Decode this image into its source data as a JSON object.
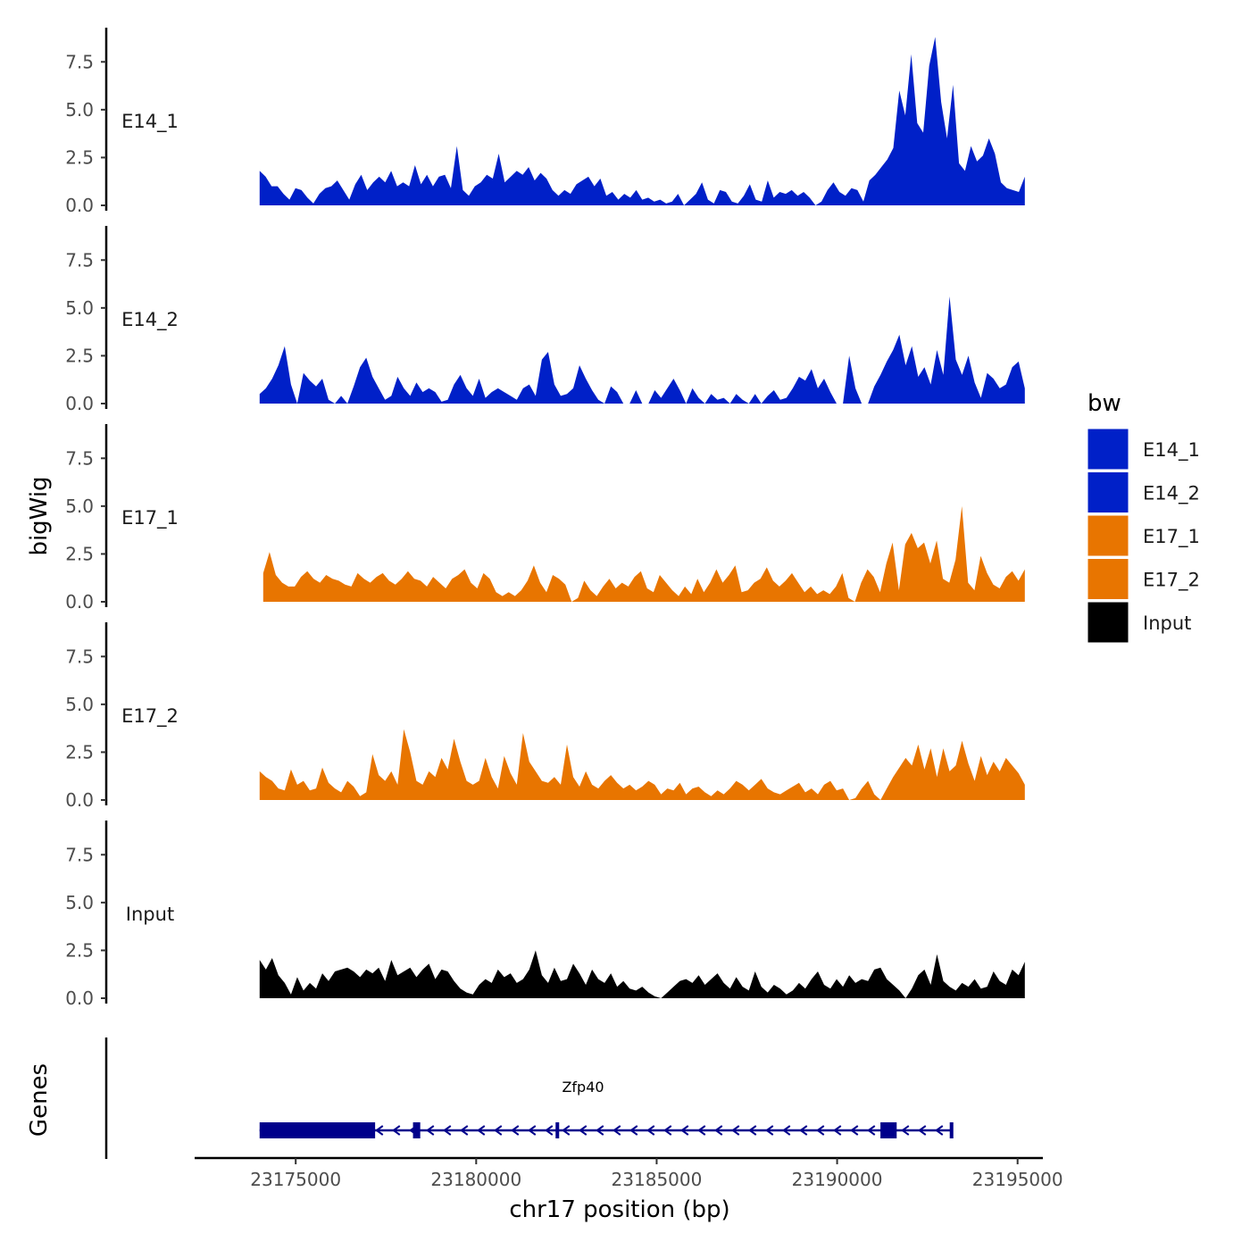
{
  "chart_data": {
    "type": "area",
    "ylabel": "bigWig",
    "xlabel": "chr17 position (bp)",
    "ylim": [
      0,
      9.1
    ],
    "y_ticks": [
      "0.0",
      "2.5",
      "5.0",
      "7.5"
    ],
    "x_range": [
      23172200,
      23195700
    ],
    "x_ticks": [
      23175000,
      23180000,
      23185000,
      23190000,
      23195000
    ],
    "x_tick_labels": [
      "23175000",
      "23180000",
      "23185000",
      "23190000",
      "23195000"
    ],
    "genes_ylabel": "Genes",
    "legend": {
      "title": "bw",
      "entries": [
        "E14_1",
        "E14_2",
        "E17_1",
        "E17_2",
        "Input"
      ]
    },
    "colors": {
      "E14_1": "#0020c8",
      "E14_2": "#0020c8",
      "E17_1": "#e87500",
      "E17_2": "#e87500",
      "Input": "#000000",
      "gene": "#00008b"
    },
    "series": [
      {
        "name": "E14_1",
        "start": 23174000,
        "end": 23195200,
        "values": [
          1.8,
          1.5,
          1.0,
          1.0,
          0.6,
          0.3,
          0.9,
          0.8,
          0.4,
          0.1,
          0.6,
          0.9,
          1.0,
          1.3,
          0.8,
          0.3,
          1.1,
          1.6,
          0.8,
          1.2,
          1.5,
          1.2,
          1.8,
          1.0,
          1.2,
          1.0,
          2.1,
          1.1,
          1.6,
          1.0,
          1.5,
          1.6,
          0.9,
          3.1,
          0.8,
          0.5,
          1.0,
          1.2,
          1.6,
          1.4,
          2.7,
          1.2,
          1.5,
          1.8,
          1.6,
          2.0,
          1.3,
          1.7,
          1.4,
          0.8,
          0.5,
          0.8,
          0.6,
          1.1,
          1.3,
          1.5,
          1.0,
          1.4,
          0.5,
          0.7,
          0.3,
          0.6,
          0.4,
          0.8,
          0.3,
          0.4,
          0.2,
          0.3,
          0.1,
          0.2,
          0.6,
          0.0,
          0.3,
          0.6,
          1.2,
          0.3,
          0.1,
          0.8,
          0.7,
          0.2,
          0.1,
          0.5,
          1.1,
          0.3,
          0.2,
          1.3,
          0.4,
          0.7,
          0.6,
          0.8,
          0.5,
          0.7,
          0.4,
          0.0,
          0.2,
          0.8,
          1.2,
          0.7,
          0.5,
          0.9,
          0.8,
          0.2,
          1.3,
          1.6,
          2.0,
          2.4,
          3.0,
          6.0,
          4.7,
          7.9,
          4.3,
          3.8,
          7.3,
          8.8,
          5.4,
          3.5,
          6.3,
          2.2,
          1.8,
          3.1,
          2.3,
          2.6,
          3.5,
          2.7,
          1.2,
          0.9,
          0.8,
          0.7,
          1.5
        ]
      },
      {
        "name": "E14_2",
        "start": 23174000,
        "end": 23195200,
        "values": [
          0.5,
          0.8,
          1.3,
          2.0,
          3.0,
          1.0,
          0.0,
          1.6,
          1.2,
          0.9,
          1.3,
          0.2,
          0.0,
          0.4,
          0.0,
          0.9,
          1.9,
          2.4,
          1.4,
          0.8,
          0.2,
          0.4,
          1.4,
          0.8,
          0.4,
          1.1,
          0.6,
          0.8,
          0.6,
          0.1,
          0.2,
          1.0,
          1.5,
          0.8,
          0.4,
          1.3,
          0.3,
          0.6,
          0.8,
          0.6,
          0.4,
          0.2,
          0.8,
          1.0,
          0.4,
          2.3,
          2.7,
          1.0,
          0.4,
          0.5,
          0.8,
          2.0,
          1.3,
          0.7,
          0.2,
          0.0,
          0.9,
          0.6,
          0.0,
          0.0,
          0.7,
          0.0,
          0.0,
          0.7,
          0.3,
          0.8,
          1.3,
          0.7,
          0.0,
          0.8,
          0.3,
          0.0,
          0.5,
          0.2,
          0.3,
          0.0,
          0.5,
          0.2,
          0.0,
          0.5,
          0.0,
          0.4,
          0.7,
          0.2,
          0.3,
          0.8,
          1.4,
          1.2,
          1.8,
          0.8,
          1.3,
          0.6,
          0.0,
          0.0,
          2.5,
          0.8,
          0.0,
          0.0,
          0.9,
          1.5,
          2.2,
          2.8,
          3.6,
          2.0,
          3.0,
          1.4,
          1.9,
          1.0,
          2.8,
          1.5,
          5.6,
          2.3,
          1.5,
          2.5,
          1.1,
          0.3,
          1.6,
          1.3,
          0.8,
          1.0,
          1.9,
          2.2,
          0.8
        ]
      },
      {
        "name": "E17_1",
        "start": 23174100,
        "end": 23195200,
        "values": [
          1.5,
          2.6,
          1.4,
          1.0,
          0.8,
          0.8,
          1.3,
          1.6,
          1.2,
          1.0,
          1.4,
          1.2,
          1.1,
          0.9,
          0.8,
          1.5,
          1.2,
          1.0,
          1.3,
          1.5,
          1.1,
          0.9,
          1.2,
          1.6,
          1.2,
          1.1,
          0.8,
          1.3,
          1.0,
          0.7,
          1.2,
          1.4,
          1.7,
          1.0,
          0.7,
          1.5,
          1.2,
          0.5,
          0.3,
          0.5,
          0.3,
          0.6,
          1.1,
          1.9,
          1.0,
          0.5,
          1.4,
          1.2,
          0.9,
          0.0,
          0.2,
          1.1,
          0.6,
          0.3,
          0.8,
          1.2,
          0.7,
          1.0,
          0.8,
          1.3,
          1.6,
          0.7,
          0.5,
          1.4,
          1.0,
          0.6,
          0.3,
          0.8,
          0.4,
          1.2,
          0.5,
          1.0,
          1.7,
          1.0,
          1.4,
          1.9,
          0.5,
          0.6,
          1.0,
          1.2,
          1.8,
          1.1,
          0.8,
          1.1,
          1.5,
          1.0,
          0.5,
          0.8,
          0.4,
          0.6,
          0.4,
          0.8,
          1.5,
          0.2,
          0.0,
          1.0,
          1.7,
          1.3,
          0.5,
          2.0,
          3.1,
          0.6,
          3.0,
          3.6,
          2.8,
          3.1,
          2.0,
          3.2,
          1.2,
          1.0,
          2.2,
          5.0,
          1.0,
          0.6,
          2.4,
          1.5,
          0.9,
          0.7,
          1.3,
          1.6,
          1.1,
          1.7
        ]
      },
      {
        "name": "E17_2",
        "start": 23174000,
        "end": 23195200,
        "values": [
          1.5,
          1.2,
          1.0,
          0.6,
          0.5,
          1.6,
          0.8,
          1.0,
          0.5,
          0.6,
          1.7,
          0.9,
          0.6,
          0.4,
          1.0,
          0.7,
          0.2,
          0.4,
          2.4,
          1.3,
          1.0,
          1.5,
          0.8,
          3.7,
          2.5,
          1.0,
          0.8,
          1.5,
          1.2,
          2.2,
          1.6,
          3.2,
          2.0,
          1.0,
          0.8,
          1.0,
          2.2,
          1.2,
          0.6,
          2.3,
          1.4,
          0.8,
          3.5,
          2.0,
          1.5,
          1.0,
          0.9,
          1.2,
          0.8,
          2.9,
          1.2,
          0.7,
          1.5,
          0.8,
          0.6,
          1.0,
          1.3,
          0.9,
          0.6,
          0.8,
          0.5,
          0.7,
          1.0,
          0.8,
          0.3,
          0.6,
          0.5,
          0.9,
          0.3,
          0.6,
          0.7,
          0.4,
          0.2,
          0.5,
          0.3,
          0.6,
          1.0,
          0.8,
          0.5,
          0.8,
          1.1,
          0.6,
          0.4,
          0.3,
          0.5,
          0.7,
          0.9,
          0.4,
          0.6,
          0.3,
          0.8,
          1.0,
          0.5,
          0.6,
          0.0,
          0.1,
          0.6,
          1.0,
          0.3,
          0.0,
          0.6,
          1.2,
          1.7,
          2.2,
          1.8,
          2.9,
          1.6,
          2.7,
          1.2,
          2.7,
          1.5,
          1.8,
          3.1,
          1.9,
          1.0,
          2.3,
          1.3,
          2.0,
          1.5,
          2.2,
          1.8,
          1.4,
          0.8
        ]
      },
      {
        "name": "Input",
        "start": 23174000,
        "end": 23195200,
        "values": [
          2.0,
          1.5,
          2.1,
          1.2,
          0.8,
          0.2,
          1.1,
          0.4,
          0.8,
          0.5,
          1.3,
          0.9,
          1.4,
          1.5,
          1.6,
          1.4,
          1.1,
          1.5,
          1.3,
          1.6,
          0.9,
          2.0,
          1.2,
          1.4,
          1.6,
          1.1,
          1.5,
          1.8,
          1.0,
          1.5,
          1.4,
          0.9,
          0.5,
          0.3,
          0.2,
          0.7,
          1.0,
          0.8,
          1.5,
          1.1,
          1.3,
          0.8,
          1.0,
          1.5,
          2.5,
          1.2,
          0.8,
          1.6,
          0.9,
          1.0,
          1.8,
          1.3,
          0.7,
          1.5,
          1.0,
          0.8,
          1.3,
          0.6,
          0.9,
          0.5,
          0.4,
          0.6,
          0.3,
          0.1,
          0.0,
          0.3,
          0.6,
          0.9,
          1.0,
          0.8,
          1.2,
          0.7,
          1.0,
          1.3,
          0.8,
          0.5,
          1.1,
          0.6,
          0.4,
          1.4,
          0.6,
          0.3,
          0.7,
          0.5,
          0.2,
          0.4,
          0.8,
          0.5,
          1.0,
          1.4,
          0.7,
          0.5,
          1.0,
          0.6,
          1.2,
          0.8,
          1.0,
          0.9,
          1.5,
          1.6,
          1.0,
          0.7,
          0.4,
          0.0,
          0.5,
          1.2,
          1.5,
          0.7,
          2.3,
          0.9,
          0.6,
          0.4,
          0.8,
          0.6,
          1.0,
          0.5,
          0.6,
          1.4,
          0.9,
          0.7,
          1.5,
          1.2,
          1.9
        ]
      }
    ],
    "gene": {
      "name": "Zfp40",
      "start": 23174000,
      "end": 23193200,
      "strand": "-",
      "thick_exons": [
        [
          23174000,
          23177200
        ],
        [
          23178250,
          23178450
        ],
        [
          23191200,
          23191650
        ]
      ],
      "small_exons": [
        [
          23182200,
          23182280
        ],
        [
          23193120,
          23193220
        ]
      ]
    }
  }
}
